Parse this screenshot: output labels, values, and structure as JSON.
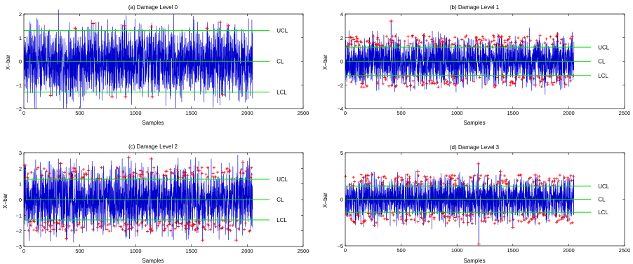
{
  "figure": {
    "colors": {
      "signal": "#0000cc",
      "outlier": "#ff0000",
      "limit": "#00dd00",
      "axis": "#000000"
    }
  },
  "chart_data": [
    {
      "type": "line",
      "title": "(a) Damage Level 0",
      "xlabel": "Samples",
      "ylabel": "X−bar",
      "xlim": [
        0,
        2500
      ],
      "ylim": [
        -2,
        2
      ],
      "xticks": [
        0,
        500,
        1000,
        1500,
        2000,
        2500
      ],
      "yticks": [
        -2,
        -1,
        0,
        1,
        2
      ],
      "xtick_labels": [
        "0",
        "500",
        "1000",
        "1500",
        "2000",
        "2500"
      ],
      "ytick_labels": [
        "−2",
        "−1",
        "0",
        "1",
        "2"
      ],
      "n_samples": 2048,
      "signal_amplitude": 0.75,
      "limits": [
        {
          "label": "UCL",
          "value": 1.3
        },
        {
          "label": "CL",
          "value": 0
        },
        {
          "label": "LCL",
          "value": -1.3
        }
      ],
      "outliers": [
        {
          "x": 240,
          "y": -1.45
        },
        {
          "x": 460,
          "y": 1.4
        },
        {
          "x": 620,
          "y": 1.6
        },
        {
          "x": 790,
          "y": -1.5
        },
        {
          "x": 900,
          "y": 1.5
        },
        {
          "x": 910,
          "y": -1.5
        },
        {
          "x": 1140,
          "y": 1.45
        },
        {
          "x": 1150,
          "y": -1.5
        },
        {
          "x": 1640,
          "y": 1.4
        },
        {
          "x": 1760,
          "y": 1.65
        },
        {
          "x": 1780,
          "y": -1.4
        },
        {
          "x": 1830,
          "y": 1.5
        }
      ]
    },
    {
      "type": "line",
      "title": "(b) Damage Level 1",
      "xlabel": "Samples",
      "ylabel": "X−bar",
      "xlim": [
        0,
        2500
      ],
      "ylim": [
        -4,
        4
      ],
      "xticks": [
        0,
        500,
        1000,
        1500,
        2000,
        2500
      ],
      "yticks": [
        -4,
        -2,
        0,
        2,
        4
      ],
      "xtick_labels": [
        "0",
        "500",
        "1000",
        "1500",
        "2000",
        "2500"
      ],
      "ytick_labels": [
        "−4",
        "−2",
        "0",
        "2",
        "4"
      ],
      "n_samples": 2048,
      "signal_amplitude": 1.0,
      "limits": [
        {
          "label": "UCL",
          "value": 1.2
        },
        {
          "label": "CL",
          "value": 0
        },
        {
          "label": "LCL",
          "value": -1.2
        }
      ],
      "outliers": [
        {
          "x": 410,
          "y": 3.4
        },
        {
          "x": 60,
          "y": 2.0
        },
        {
          "x": 150,
          "y": -1.9
        },
        {
          "x": 700,
          "y": 2.2
        },
        {
          "x": 980,
          "y": -1.9
        },
        {
          "x": 1400,
          "y": 2.1
        },
        {
          "x": 1700,
          "y": -2.0
        },
        {
          "x": 1900,
          "y": 2.3
        },
        {
          "x": 2030,
          "y": 2.1
        }
      ]
    },
    {
      "type": "line",
      "title": "(c) Damage Level 2",
      "xlabel": "Samples",
      "ylabel": "X−bar",
      "xlim": [
        0,
        2500
      ],
      "ylim": [
        -3,
        3
      ],
      "xticks": [
        0,
        500,
        1000,
        1500,
        2000,
        2500
      ],
      "yticks": [
        -3,
        -2,
        -1,
        0,
        1,
        2,
        3
      ],
      "xtick_labels": [
        "0",
        "500",
        "1000",
        "1500",
        "2000",
        "2500"
      ],
      "ytick_labels": [
        "−3",
        "−2",
        "−1",
        "0",
        "1",
        "2",
        "3"
      ],
      "n_samples": 2048,
      "signal_amplitude": 1.05,
      "limits": [
        {
          "label": "UCL",
          "value": 1.3
        },
        {
          "label": "CL",
          "value": 0
        },
        {
          "label": "LCL",
          "value": -1.3
        }
      ],
      "outliers": [
        {
          "x": 940,
          "y": 2.7
        },
        {
          "x": 1140,
          "y": 2.6
        },
        {
          "x": 1600,
          "y": -2.6
        },
        {
          "x": 10,
          "y": 2.2
        },
        {
          "x": 330,
          "y": 2.3
        },
        {
          "x": 1960,
          "y": 2.4
        },
        {
          "x": 380,
          "y": -2.5
        },
        {
          "x": 1900,
          "y": -2.6
        }
      ]
    },
    {
      "type": "line",
      "title": "(d) Damage Level 3",
      "xlabel": "Samples",
      "ylabel": "X−bar",
      "xlim": [
        0,
        2500
      ],
      "ylim": [
        -5,
        5
      ],
      "xticks": [
        0,
        500,
        1000,
        1500,
        2000,
        2500
      ],
      "yticks": [
        -5,
        0,
        5
      ],
      "xtick_labels": [
        "0",
        "500",
        "1000",
        "1500",
        "2000",
        "2500"
      ],
      "ytick_labels": [
        "−5",
        "0",
        "5"
      ],
      "n_samples": 2048,
      "signal_amplitude": 1.15,
      "limits": [
        {
          "label": "UCL",
          "value": 1.4
        },
        {
          "label": "CL",
          "value": 0
        },
        {
          "label": "LCL",
          "value": -1.4
        }
      ],
      "outliers": [
        {
          "x": 1190,
          "y": 3.8
        },
        {
          "x": 1195,
          "y": -4.8
        },
        {
          "x": 1390,
          "y": 3.0
        },
        {
          "x": 1500,
          "y": -3.0
        },
        {
          "x": 650,
          "y": 3.0
        },
        {
          "x": 520,
          "y": -2.6
        },
        {
          "x": 1700,
          "y": 2.6
        },
        {
          "x": 260,
          "y": -2.8
        }
      ]
    }
  ]
}
